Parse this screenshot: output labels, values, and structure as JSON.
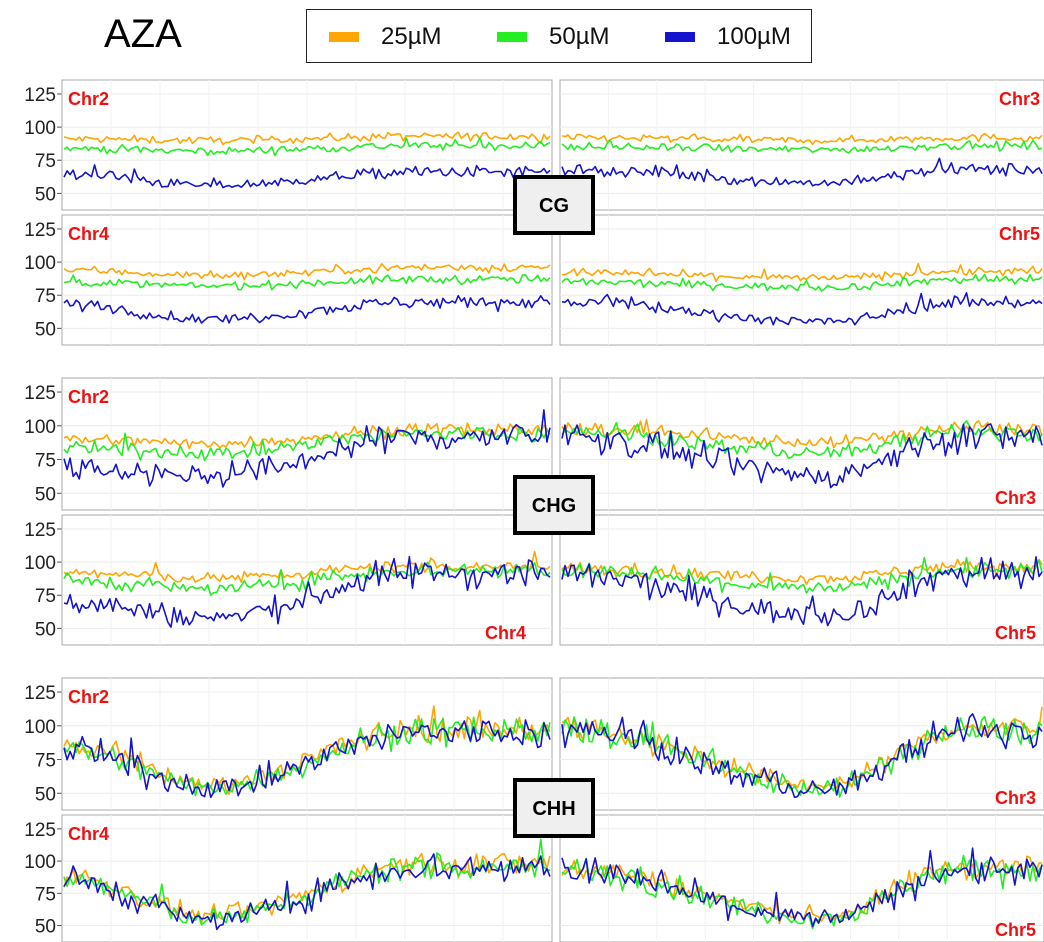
{
  "title": "AZA",
  "legend": [
    {
      "label": "25µM",
      "color": "#FFA500"
    },
    {
      "label": "50µM",
      "color": "#22EE22"
    },
    {
      "label": "100µM",
      "color": "#1414CC"
    }
  ],
  "chart_data": {
    "type": "line",
    "ylim": [
      45,
      128
    ],
    "yticks": [
      50,
      75,
      100,
      125
    ],
    "grid": true,
    "legend_position": "top",
    "series_names": [
      "25µM",
      "50µM",
      "100µM"
    ],
    "panels": [
      {
        "context": "CG",
        "chromosomes": [
          {
            "label": "Chr2",
            "mean": [
              92,
              85,
              62
            ],
            "profile_start": [
              91,
              84,
              65
            ],
            "profile_dip": [
              90,
              82,
              56
            ],
            "profile_end": [
              93,
              86,
              66
            ]
          },
          {
            "label": "Chr3",
            "mean": [
              92,
              85,
              65
            ],
            "profile_start": [
              92,
              85,
              68
            ],
            "profile_dip": [
              90,
              83,
              58
            ],
            "profile_end": [
              92,
              86,
              68
            ]
          },
          {
            "label": "Chr4",
            "mean": [
              93,
              84,
              65
            ],
            "profile_start": [
              94,
              85,
              68
            ],
            "profile_dip": [
              90,
              82,
              57
            ],
            "profile_end": [
              96,
              87,
              70
            ]
          },
          {
            "label": "Chr5",
            "mean": [
              93,
              85,
              66
            ],
            "profile_start": [
              92,
              85,
              70
            ],
            "profile_dip": [
              88,
              81,
              55
            ],
            "profile_end": [
              93,
              87,
              70
            ]
          }
        ]
      },
      {
        "context": "CHG",
        "chromosomes": [
          {
            "label": "Chr2",
            "mean": [
              92,
              86,
              78
            ],
            "profile_start": [
              90,
              83,
              70
            ],
            "profile_dip": [
              87,
              80,
              63
            ],
            "profile_end": [
              97,
              94,
              92
            ]
          },
          {
            "label": "Chr3",
            "mean": [
              93,
              87,
              80
            ],
            "profile_start": [
              98,
              95,
              92
            ],
            "profile_dip": [
              88,
              80,
              63
            ],
            "profile_end": [
              98,
              95,
              92
            ]
          },
          {
            "label": "Chr4",
            "mean": [
              92,
              87,
              78
            ],
            "profile_start": [
              92,
              86,
              70
            ],
            "profile_dip": [
              88,
              80,
              58
            ],
            "profile_end": [
              97,
              94,
              92
            ]
          },
          {
            "label": "Chr5",
            "mean": [
              93,
              87,
              80
            ],
            "profile_start": [
              95,
              93,
              90
            ],
            "profile_dip": [
              88,
              80,
              60
            ],
            "profile_end": [
              97,
              94,
              92
            ]
          }
        ]
      },
      {
        "context": "CHH",
        "chromosomes": [
          {
            "label": "Chr2",
            "mean": [
              85,
              83,
              82
            ],
            "profile_start": [
              85,
              83,
              82
            ],
            "profile_dip": [
              57,
              55,
              54
            ],
            "profile_end": [
              98,
              96,
              95
            ]
          },
          {
            "label": "Chr3",
            "mean": [
              88,
              86,
              85
            ],
            "profile_start": [
              100,
              98,
              97
            ],
            "profile_dip": [
              56,
              54,
              53
            ],
            "profile_end": [
              98,
              96,
              95
            ]
          },
          {
            "label": "Chr4",
            "mean": [
              85,
              83,
              82
            ],
            "profile_start": [
              88,
              86,
              85
            ],
            "profile_dip": [
              58,
              56,
              55
            ],
            "profile_end": [
              98,
              96,
              95
            ]
          },
          {
            "label": "Chr5",
            "mean": [
              86,
              84,
              83
            ],
            "profile_start": [
              95,
              93,
              92
            ],
            "profile_dip": [
              58,
              56,
              55
            ],
            "profile_end": [
              96,
              94,
              93
            ]
          }
        ]
      }
    ]
  }
}
